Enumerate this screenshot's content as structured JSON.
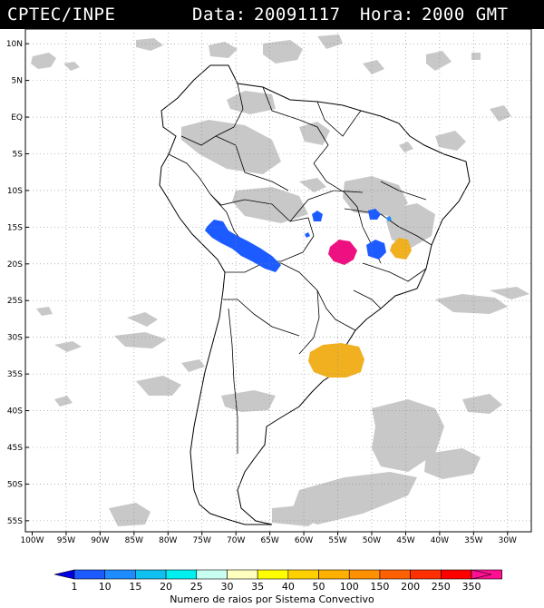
{
  "header": {
    "agency": "CPTEC/INPE",
    "date_label": "Data:",
    "date_value": "20091117",
    "time_label": "Hora:",
    "time_value": "2000 GMT"
  },
  "map": {
    "lon_labels": [
      "100W",
      "95W",
      "90W",
      "85W",
      "80W",
      "75W",
      "70W",
      "65W",
      "60W",
      "55W",
      "50W",
      "45W",
      "40W",
      "35W",
      "30W"
    ],
    "lat_labels": [
      "10N",
      "5N",
      "EQ",
      "5S",
      "10S",
      "15S",
      "20S",
      "25S",
      "30S",
      "35S",
      "40S",
      "45S",
      "50S",
      "55S"
    ],
    "lon_values": [
      -100,
      -95,
      -90,
      -85,
      -80,
      -75,
      -70,
      -65,
      -60,
      -55,
      -50,
      -45,
      -40,
      -35,
      -30
    ],
    "lat_values": [
      10,
      5,
      0,
      -5,
      -10,
      -15,
      -20,
      -25,
      -30,
      -35,
      -40,
      -45,
      -50,
      -55
    ],
    "land_fill": "#ffffff",
    "cloud_color": "#c8c8c8",
    "border_color": "#000000",
    "grid_color": "#888888"
  },
  "lightning_systems": [
    {
      "region": "Peru-Bolivia Andes",
      "class_max": 10,
      "color": "#1c5bff"
    },
    {
      "region": "Central Brazil west",
      "class_max": 10,
      "color": "#1c5bff"
    },
    {
      "region": "Mato Grosso / Goias",
      "class_max": 350,
      "color": "#ee1080"
    },
    {
      "region": "Minas Gerais",
      "class_max": 100,
      "color": "#f0b020"
    },
    {
      "region": "Uruguay / Rio Grande do Sul",
      "class_max": 100,
      "color": "#f0b020"
    }
  ],
  "colorbar": {
    "labels": [
      "1",
      "10",
      "15",
      "20",
      "25",
      "30",
      "35",
      "40",
      "50",
      "100",
      "150",
      "200",
      "250",
      "350"
    ],
    "colors": [
      "#0000e0",
      "#1c5bff",
      "#1e8cff",
      "#10c0f0",
      "#00f0f0",
      "#c8fff0",
      "#ffffc0",
      "#ffff00",
      "#ffd000",
      "#ffb000",
      "#ff9000",
      "#ff6000",
      "#ff3000",
      "#ff0000",
      "#ff1090"
    ],
    "caption": "Numero de raios por Sistema Convectivo"
  }
}
